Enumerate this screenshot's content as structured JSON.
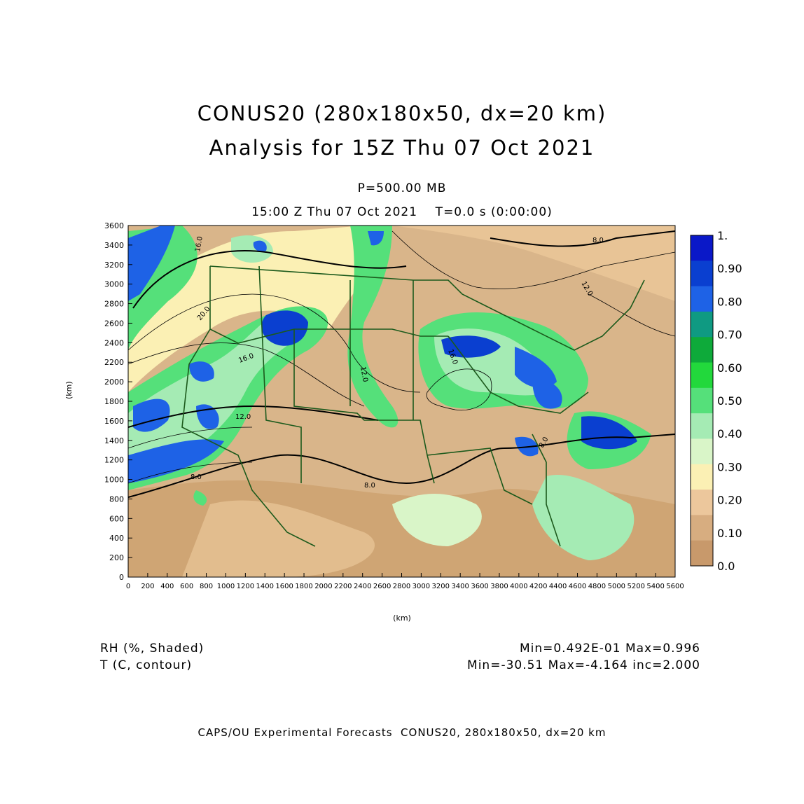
{
  "header": {
    "title_line1": "CONUS20 (280x180x50, dx=20 km)",
    "title_line2": "Analysis for 15Z Thu 07 Oct 2021",
    "level": "P=500.00 MB",
    "valid_time": "15:00 Z Thu 07 Oct 2021    T=0.0 s (0:00:00)"
  },
  "axes": {
    "x_label": "(km)",
    "y_label": "(km)",
    "x_ticks": [
      "0",
      "200",
      "400",
      "600",
      "800",
      "1000",
      "1200",
      "1400",
      "1600",
      "1800",
      "2000",
      "2200",
      "2400",
      "2600",
      "2800",
      "3000",
      "3200",
      "3400",
      "3600",
      "3800",
      "4000",
      "4200",
      "4400",
      "4600",
      "4800",
      "5000",
      "5200",
      "5400",
      "5600"
    ],
    "y_ticks": [
      "0",
      "200",
      "400",
      "600",
      "800",
      "1000",
      "1200",
      "1400",
      "1600",
      "1800",
      "2000",
      "2200",
      "2400",
      "2600",
      "2800",
      "3000",
      "3200",
      "3400",
      "3600"
    ],
    "x_range": [
      0,
      5600
    ],
    "y_range": [
      0,
      3600
    ]
  },
  "colorbar": {
    "labels": [
      "0.0",
      "0.10",
      "0.20",
      "0.30",
      "0.40",
      "0.50",
      "0.60",
      "0.70",
      "0.80",
      "0.90",
      "1."
    ],
    "colors": [
      "#c8996b",
      "#d7ad80",
      "#ecc79c",
      "#fbf0b4",
      "#d9f5c8",
      "#a5ebb4",
      "#55e07a",
      "#22d83c",
      "#0eaa3a",
      "#0f9a82",
      "#1e62e6",
      "#0a3fd0",
      "#0a18c8"
    ]
  },
  "contours": {
    "labels": [
      "20.0",
      "16.0",
      "12.0",
      "12.0",
      "16.0",
      "12.0",
      "8.0",
      "8.0",
      "8.0",
      "8.0",
      "16.0",
      "12.0",
      "20.0"
    ]
  },
  "legend": {
    "shaded_name": "RH (%, Shaded)",
    "shaded_stats": "Min=0.492E-01 Max=0.996",
    "contour_name": "T (C, contour)",
    "contour_stats": "Min=-30.51 Max=-4.164 inc=2.000"
  },
  "footer": "CAPS/OU Experimental Forecasts  CONUS20, 280x180x50, dx=20 km"
}
